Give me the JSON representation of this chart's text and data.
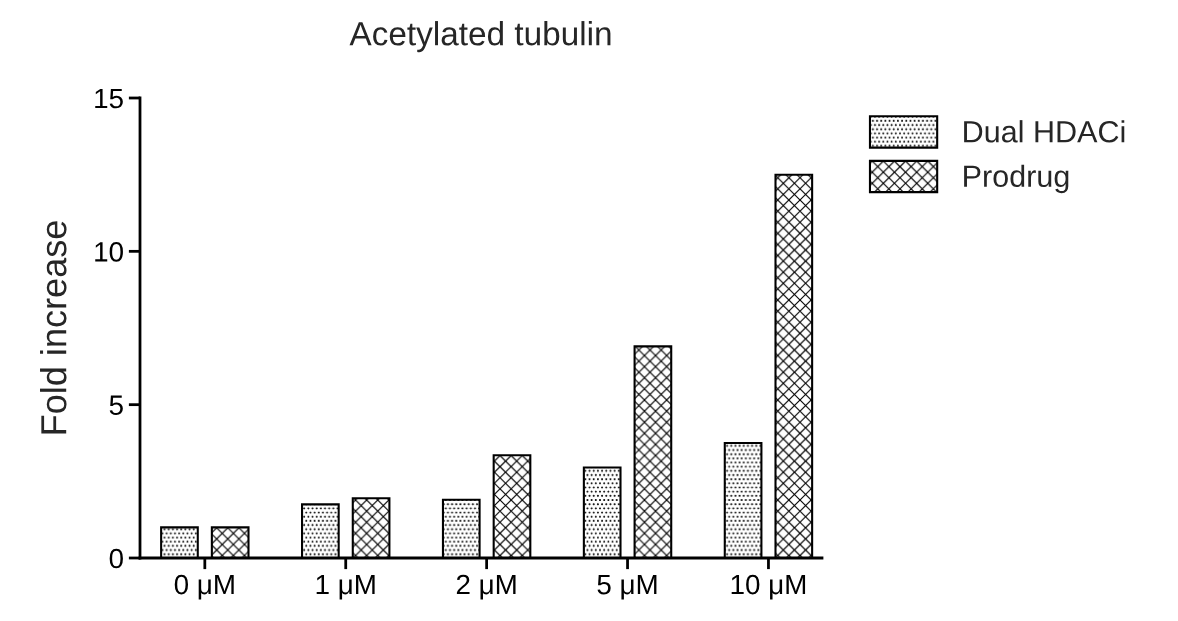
{
  "chart_data": {
    "type": "bar",
    "title": "Acetylated tubulin",
    "ylabel": "Fold increase",
    "categories": [
      "0 μM",
      "1 μM",
      "2 μM",
      "5 μM",
      "10 μM"
    ],
    "series": [
      {
        "name": "Dual HDACi",
        "color": "#000000",
        "values": [
          1.0,
          1.75,
          1.9,
          2.95,
          3.75
        ]
      },
      {
        "name": "Prodrug",
        "color": "#000000",
        "values": [
          1.0,
          1.95,
          3.35,
          6.9,
          12.5
        ]
      }
    ],
    "ylim": [
      0,
      15
    ],
    "yticks": [
      0,
      5,
      10,
      15
    ],
    "grid": false,
    "legend": "top right"
  }
}
